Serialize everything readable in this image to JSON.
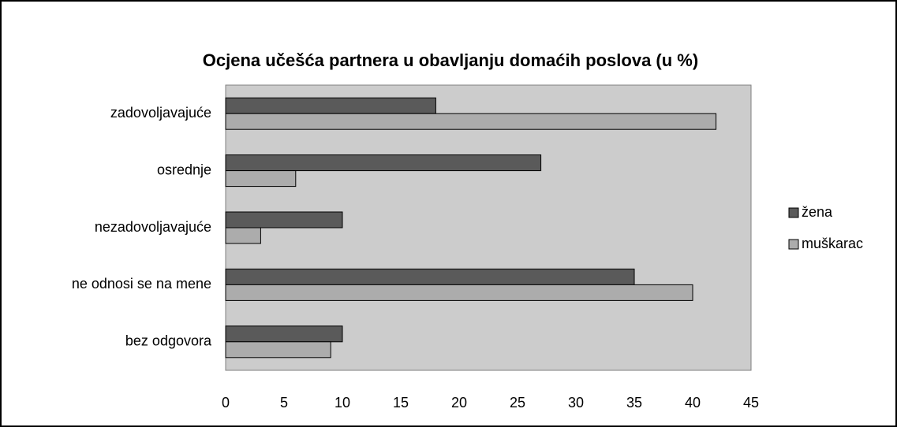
{
  "chart_data": {
    "type": "barh",
    "title": "Ocjena učešća partnera u obavljanju domaćih poslova (u %)",
    "categories": [
      "zadovoljavajuće",
      "osrednje",
      "nezadovoljavajuće",
      "ne odnosi se na mene",
      "bez odgovora"
    ],
    "series": [
      {
        "name": "žena",
        "color": "#5a5a5a",
        "values": [
          18,
          27,
          10,
          35,
          10
        ]
      },
      {
        "name": "muškarac",
        "color": "#acacac",
        "values": [
          42,
          6,
          3,
          40,
          9
        ]
      }
    ],
    "xlim": [
      0,
      45
    ],
    "xticks": [
      0,
      5,
      10,
      15,
      20,
      25,
      30,
      35,
      40,
      45
    ],
    "grid": false,
    "legend": "right",
    "plot_background": "#cccccc"
  }
}
